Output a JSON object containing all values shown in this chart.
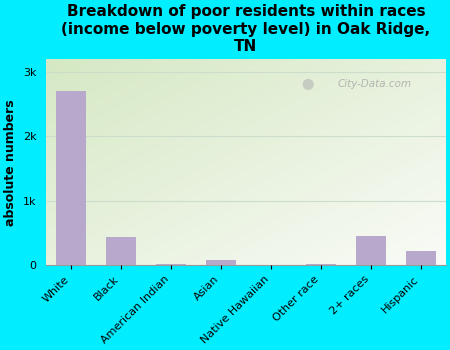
{
  "categories": [
    "White",
    "Black",
    "American Indian",
    "Asian",
    "Native Hawaiian",
    "Other race",
    "2+ races",
    "Hispanic"
  ],
  "values": [
    2700,
    430,
    25,
    85,
    5,
    15,
    460,
    220
  ],
  "bar_color": "#b8a8cc",
  "title": "Breakdown of poor residents within races\n(income below poverty level) in Oak Ridge,\nTN",
  "ylabel": "absolute numbers",
  "background_color": "#00eeff",
  "plot_bg_topleft": "#d4e8c2",
  "plot_bg_bottomright": "#f8f8f0",
  "ytick_labels": [
    "0",
    "1k",
    "2k",
    "3k"
  ],
  "ytick_values": [
    0,
    1000,
    2000,
    3000
  ],
  "ylim": [
    0,
    3200
  ],
  "title_fontsize": 11,
  "ylabel_fontsize": 9,
  "tick_fontsize": 8,
  "watermark": "City-Data.com"
}
